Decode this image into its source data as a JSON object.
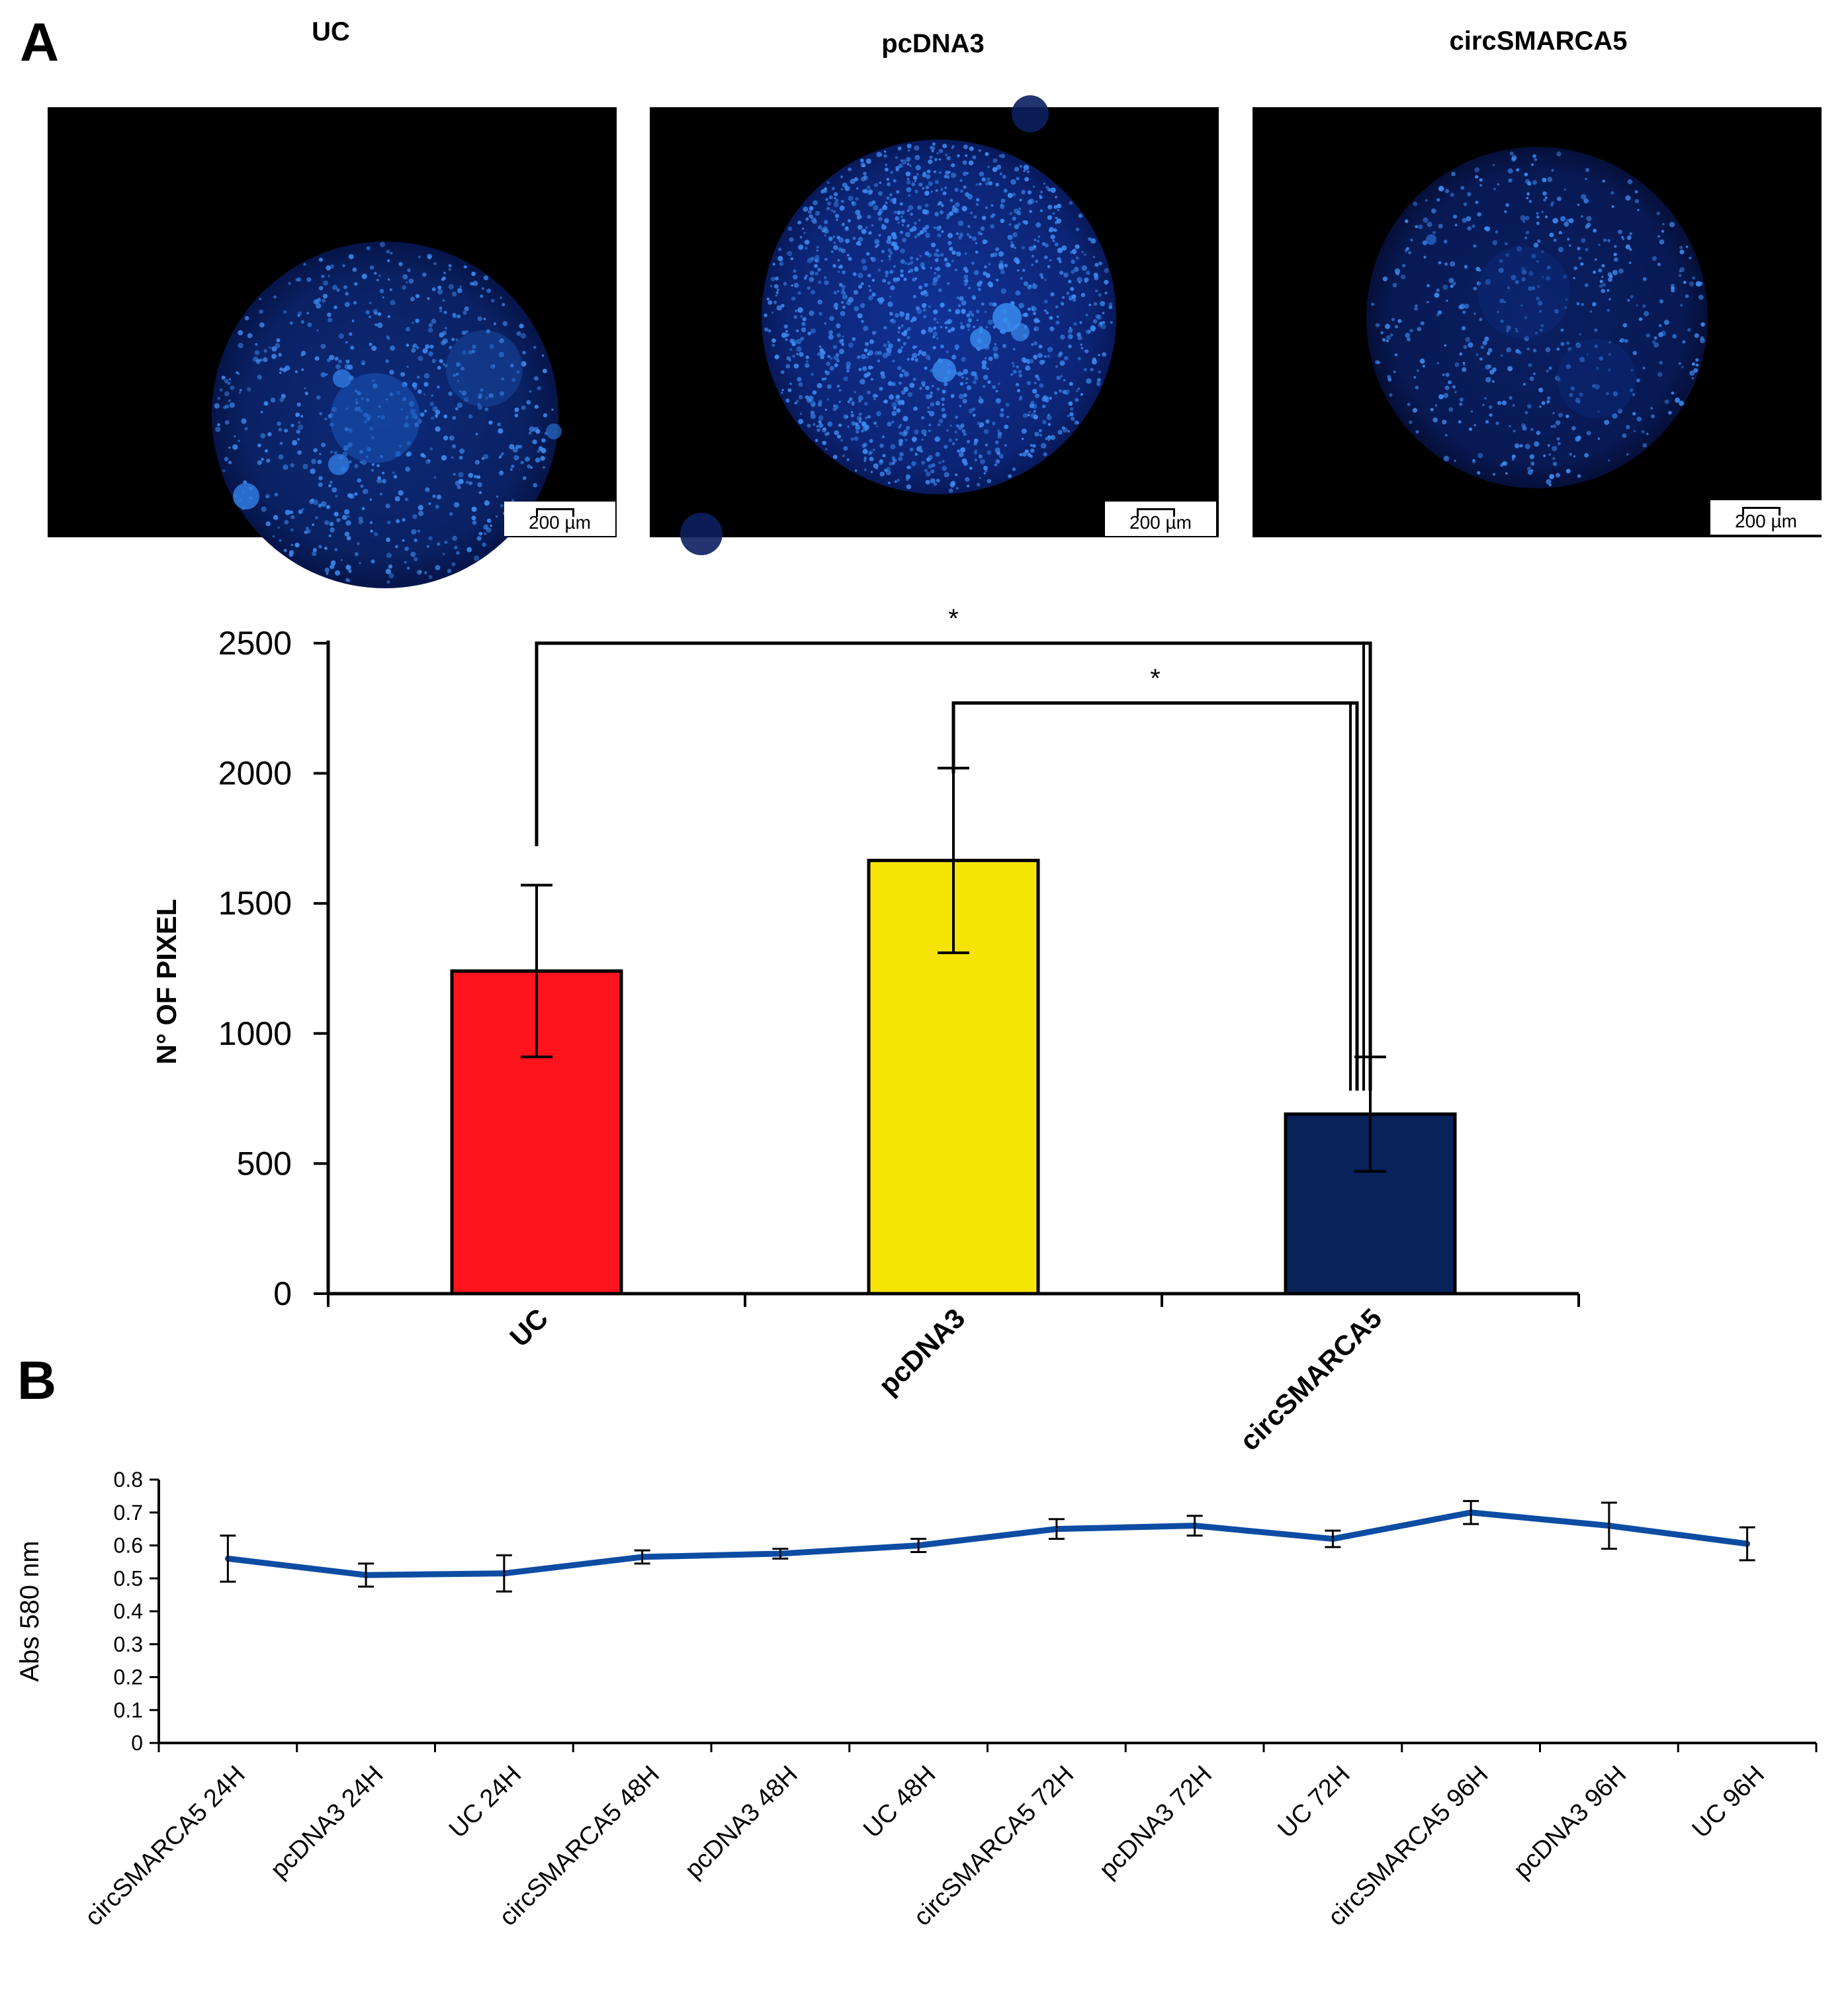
{
  "panels": {
    "a_letter": "A",
    "b_letter": "B"
  },
  "micrographs": [
    {
      "title": "UC",
      "scale_label": "200 µm"
    },
    {
      "title": "pcDNA3",
      "scale_label": "200 µm"
    },
    {
      "title": "circSMARCA5",
      "scale_label": "200 µm"
    }
  ],
  "chart_data": [
    {
      "type": "bar",
      "panel": "A",
      "categories": [
        "UC",
        "pcDNA3",
        "circSMARCA5"
      ],
      "values": [
        1240,
        1665,
        690
      ],
      "errors": [
        330,
        355,
        220
      ],
      "colors": [
        "#fd141d",
        "#f6e504",
        "#08225a"
      ],
      "ylabel": "N° OF PIXEL",
      "xlabel": "",
      "ylim": [
        0,
        2500
      ],
      "yticks": [
        0,
        500,
        1000,
        1500,
        2000,
        2500
      ],
      "significance": [
        {
          "from": "UC",
          "to": "circSMARCA5",
          "label": "*"
        },
        {
          "from": "pcDNA3",
          "to": "circSMARCA5",
          "label": "*"
        }
      ]
    },
    {
      "type": "line",
      "panel": "B",
      "categories": [
        "circSMARCA5 24H",
        "pcDNA3 24H",
        "UC 24H",
        "circSMARCA5 48H",
        "pcDNA3 48H",
        "UC 48H",
        "circSMARCA5 72H",
        "pcDNA3 72H",
        "UC 72H",
        "circSMARCA5 96H",
        "pcDNA3 96H",
        "UC 96H"
      ],
      "values": [
        0.56,
        0.51,
        0.515,
        0.565,
        0.575,
        0.6,
        0.65,
        0.66,
        0.62,
        0.7,
        0.66,
        0.605
      ],
      "errors": [
        0.07,
        0.035,
        0.055,
        0.02,
        0.015,
        0.02,
        0.03,
        0.03,
        0.025,
        0.035,
        0.07,
        0.05
      ],
      "color": "#0d4ca3",
      "ylabel": "Abs 580 nm",
      "xlabel": "",
      "ylim": [
        0,
        0.8
      ],
      "yticks": [
        "0",
        "0.1",
        "0.2",
        "0.3",
        "0.4",
        "0.5",
        "0.6",
        "0.7",
        "0.8"
      ]
    }
  ]
}
